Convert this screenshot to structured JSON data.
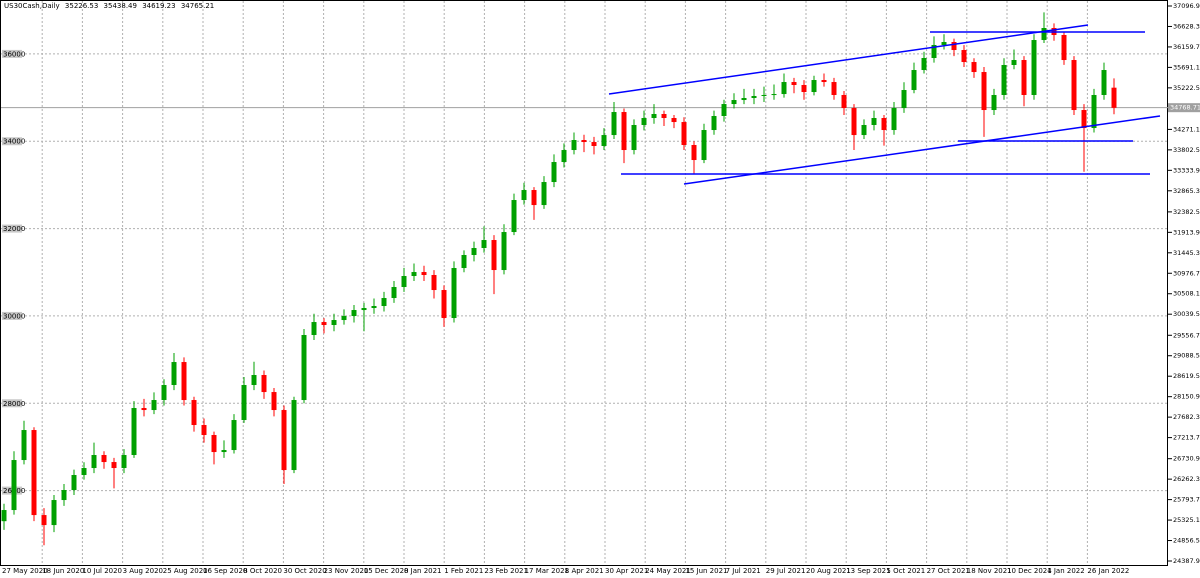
{
  "chart_data": {
    "type": "candlestick",
    "symbol": "US30Cash,Daily",
    "candles": [
      [
        25300,
        25700,
        25100,
        25555
      ],
      [
        25555,
        26900,
        25450,
        26700
      ],
      [
        26700,
        27600,
        26600,
        27387
      ],
      [
        27387,
        27450,
        25300,
        25440
      ],
      [
        25440,
        25600,
        24750,
        25211
      ],
      [
        25211,
        25900,
        25050,
        25784
      ],
      [
        25784,
        26150,
        25650,
        26013
      ],
      [
        26013,
        26480,
        25900,
        26357
      ],
      [
        26357,
        26650,
        26250,
        26517
      ],
      [
        26517,
        27100,
        26400,
        26815
      ],
      [
        26815,
        26900,
        26500,
        26654
      ],
      [
        26654,
        26750,
        26050,
        26517
      ],
      [
        26517,
        26950,
        26400,
        26815
      ],
      [
        26815,
        28050,
        26750,
        27891
      ],
      [
        27891,
        28100,
        27700,
        27845
      ],
      [
        27845,
        28250,
        27750,
        28074
      ],
      [
        28074,
        28550,
        27950,
        28418
      ],
      [
        28418,
        29150,
        28300,
        28944
      ],
      [
        28944,
        29050,
        27950,
        28074
      ],
      [
        28074,
        28150,
        27350,
        27502
      ],
      [
        27502,
        27650,
        27100,
        27273
      ],
      [
        27273,
        27350,
        26600,
        26883
      ],
      [
        26883,
        27150,
        26750,
        26929
      ],
      [
        26929,
        27750,
        26850,
        27616
      ],
      [
        27616,
        28600,
        27550,
        28418
      ],
      [
        28418,
        28950,
        28300,
        28647
      ],
      [
        28647,
        28750,
        28100,
        28257
      ],
      [
        28257,
        28350,
        27700,
        27845
      ],
      [
        27845,
        27950,
        26150,
        26471
      ],
      [
        26471,
        28150,
        26400,
        28074
      ],
      [
        28074,
        29700,
        28000,
        29563
      ],
      [
        29563,
        30050,
        29450,
        29860
      ],
      [
        29860,
        29950,
        29600,
        29792
      ],
      [
        29792,
        30050,
        29650,
        29906
      ],
      [
        29906,
        30150,
        29800,
        29998
      ],
      [
        29998,
        30250,
        29850,
        30135
      ],
      [
        30135,
        30300,
        29650,
        30181
      ],
      [
        30181,
        30400,
        30050,
        30227
      ],
      [
        30227,
        30550,
        30100,
        30410
      ],
      [
        30410,
        30800,
        30300,
        30662
      ],
      [
        30662,
        31100,
        30550,
        30914
      ],
      [
        30914,
        31200,
        30800,
        31005
      ],
      [
        31005,
        31150,
        30800,
        30937
      ],
      [
        30937,
        31050,
        30400,
        30593
      ],
      [
        30593,
        30700,
        29750,
        29952
      ],
      [
        29952,
        31250,
        29850,
        31097
      ],
      [
        31097,
        31500,
        31000,
        31395
      ],
      [
        31395,
        31700,
        31250,
        31555
      ],
      [
        31555,
        32050,
        31450,
        31738
      ],
      [
        31738,
        31850,
        30500,
        31051
      ],
      [
        31051,
        32100,
        30950,
        31921
      ],
      [
        31921,
        32800,
        31850,
        32654
      ],
      [
        32654,
        33050,
        32550,
        32883
      ],
      [
        32883,
        32950,
        32200,
        32539
      ],
      [
        32539,
        33200,
        32450,
        33066
      ],
      [
        33066,
        33700,
        32950,
        33524
      ],
      [
        33524,
        33950,
        33400,
        33799
      ],
      [
        33799,
        34200,
        33700,
        34028
      ],
      [
        34028,
        34150,
        33750,
        33982
      ],
      [
        33982,
        34100,
        33700,
        33891
      ],
      [
        33891,
        34300,
        33800,
        34142
      ],
      [
        34142,
        34900,
        34050,
        34669
      ],
      [
        34669,
        34750,
        33500,
        33799
      ],
      [
        33799,
        34500,
        33700,
        34372
      ],
      [
        34372,
        34700,
        34250,
        34532
      ],
      [
        34532,
        34850,
        34400,
        34624
      ],
      [
        34624,
        34700,
        34350,
        34532
      ],
      [
        34532,
        34600,
        34300,
        34440
      ],
      [
        34440,
        34550,
        33800,
        33914
      ],
      [
        33914,
        34000,
        33250,
        33570
      ],
      [
        33570,
        34400,
        33500,
        34257
      ],
      [
        34257,
        34700,
        34150,
        34578
      ],
      [
        34578,
        34950,
        34450,
        34852
      ],
      [
        34852,
        35100,
        34750,
        34944
      ],
      [
        34944,
        35200,
        34850,
        34990
      ],
      [
        34990,
        35200,
        34850,
        35036
      ],
      [
        35036,
        35250,
        34900,
        35059
      ],
      [
        35059,
        35300,
        34950,
        35081
      ],
      [
        35081,
        35550,
        35000,
        35356
      ],
      [
        35356,
        35450,
        35100,
        35288
      ],
      [
        35288,
        35400,
        34950,
        35127
      ],
      [
        35127,
        35500,
        35050,
        35402
      ],
      [
        35402,
        35550,
        35250,
        35356
      ],
      [
        35356,
        35450,
        34950,
        35059
      ],
      [
        35059,
        35150,
        34600,
        34761
      ],
      [
        34761,
        34850,
        33800,
        34142
      ],
      [
        34142,
        34500,
        34050,
        34372
      ],
      [
        34372,
        34700,
        34250,
        34532
      ],
      [
        34532,
        34600,
        33900,
        34257
      ],
      [
        34257,
        34900,
        34150,
        34761
      ],
      [
        34761,
        35350,
        34650,
        35173
      ],
      [
        35173,
        35800,
        35100,
        35631
      ],
      [
        35631,
        36050,
        35550,
        35906
      ],
      [
        35906,
        36400,
        35800,
        36204
      ],
      [
        36204,
        36450,
        36100,
        36272
      ],
      [
        36272,
        36350,
        35950,
        36089
      ],
      [
        36089,
        36200,
        35700,
        35814
      ],
      [
        35814,
        35900,
        35450,
        35585
      ],
      [
        35585,
        35700,
        34100,
        34715
      ],
      [
        34715,
        35200,
        34600,
        35059
      ],
      [
        35059,
        35900,
        34950,
        35746
      ],
      [
        35746,
        36100,
        35650,
        35860
      ],
      [
        35860,
        35950,
        34800,
        35059
      ],
      [
        35059,
        36450,
        34950,
        36318
      ],
      [
        36318,
        36950,
        36250,
        36593
      ],
      [
        36593,
        36700,
        36300,
        36433
      ],
      [
        36433,
        36500,
        35750,
        35860
      ],
      [
        35860,
        35950,
        34600,
        34715
      ],
      [
        34715,
        34850,
        33300,
        34303
      ],
      [
        34303,
        35200,
        34200,
        35059
      ],
      [
        35059,
        35800,
        34950,
        35631
      ],
      [
        35226.53,
        35438.49,
        34619.23,
        34765.21
      ]
    ],
    "up_color": "#00a000",
    "down_color": "#ff0000",
    "line_color": "#0000ff",
    "ylim": [
      24387.95,
      37096.95
    ],
    "yticks": [
      37096.95,
      36628.35,
      36159.75,
      35691.15,
      35222.55,
      34271.15,
      33802.55,
      33333.95,
      32865.35,
      32382.55,
      31913.95,
      31445.35,
      30976.75,
      30508.15,
      30039.55,
      {
        "value": 29556.7,
        "label": "29556.70"
      },
      29088.55,
      28619.55,
      28150.95,
      27682.35,
      27213.75,
      {
        "value": 26730.9,
        "label": "26730.90"
      },
      26262.35,
      25793.75,
      25325.15,
      24856.55,
      24387.95
    ],
    "levels": [
      36000,
      34000,
      32000,
      30000,
      28000,
      26000
    ],
    "current_price": 34768.71,
    "x_labels": [
      "27 May 2020",
      "18 Jun 2020",
      "10 Jul 2020",
      "3 Aug 2020",
      "25 Aug 2020",
      "16 Sep 2020",
      "8 Oct 2020",
      "30 Oct 2020",
      "23 Nov 2020",
      "15 Dec 2020",
      "8 Jan 2021",
      "1 Feb 2021",
      "23 Feb 2021",
      "17 Mar 2021",
      "8 Apr 2021",
      "30 Apr 2021",
      "24 May 2021",
      "15 Jun 2021",
      "7 Jul 2021",
      "29 Jul 2021",
      "20 Aug 2021",
      "13 Sep 2021",
      "5 Oct 2021",
      "27 Oct 2021",
      "18 Nov 2021",
      "10 Dec 2021",
      "4 Jan 2022",
      "26 Jan 2022"
    ],
    "trend_lines": [
      [
        35081,
        36662
      ],
      [
        33020,
        34578
      ]
    ],
    "horizontal_lines": [
      33249,
      36501,
      34005
    ],
    "grid": true
  }
}
